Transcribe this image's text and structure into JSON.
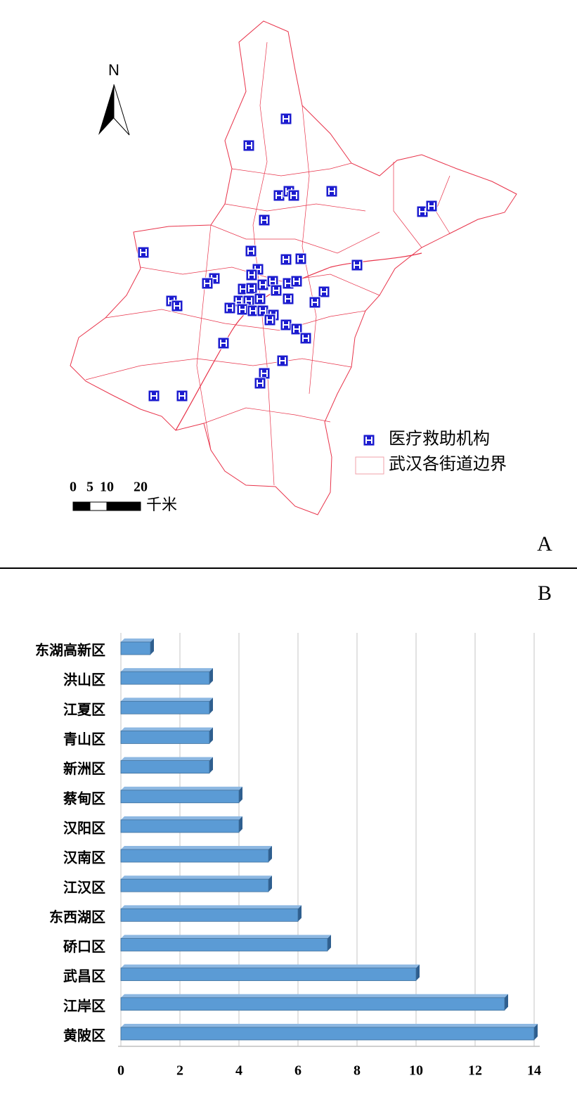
{
  "map": {
    "north_label": "N",
    "scale_ticks": [
      0,
      5,
      10,
      20
    ],
    "scale_unit": "千米",
    "legend": [
      "医疗救助机构",
      "武汉各街道边界"
    ],
    "panel_label": "A"
  },
  "chart_data": {
    "type": "hbar",
    "panel_label": "B",
    "categories": [
      "东湖高新区",
      "洪山区",
      "江夏区",
      "青山区",
      "新洲区",
      "蔡甸区",
      "汉阳区",
      "汉南区",
      "江汉区",
      "东西湖区",
      "硚口区",
      "武昌区",
      "江岸区",
      "黄陂区"
    ],
    "values": [
      1,
      3,
      3,
      3,
      3,
      4,
      4,
      5,
      5,
      6,
      7,
      10,
      13,
      14
    ],
    "color": "#5b9bd5",
    "xlim": [
      0,
      14
    ],
    "xticks": [
      0,
      2,
      4,
      6,
      8,
      10,
      12,
      14
    ],
    "grid": true
  }
}
